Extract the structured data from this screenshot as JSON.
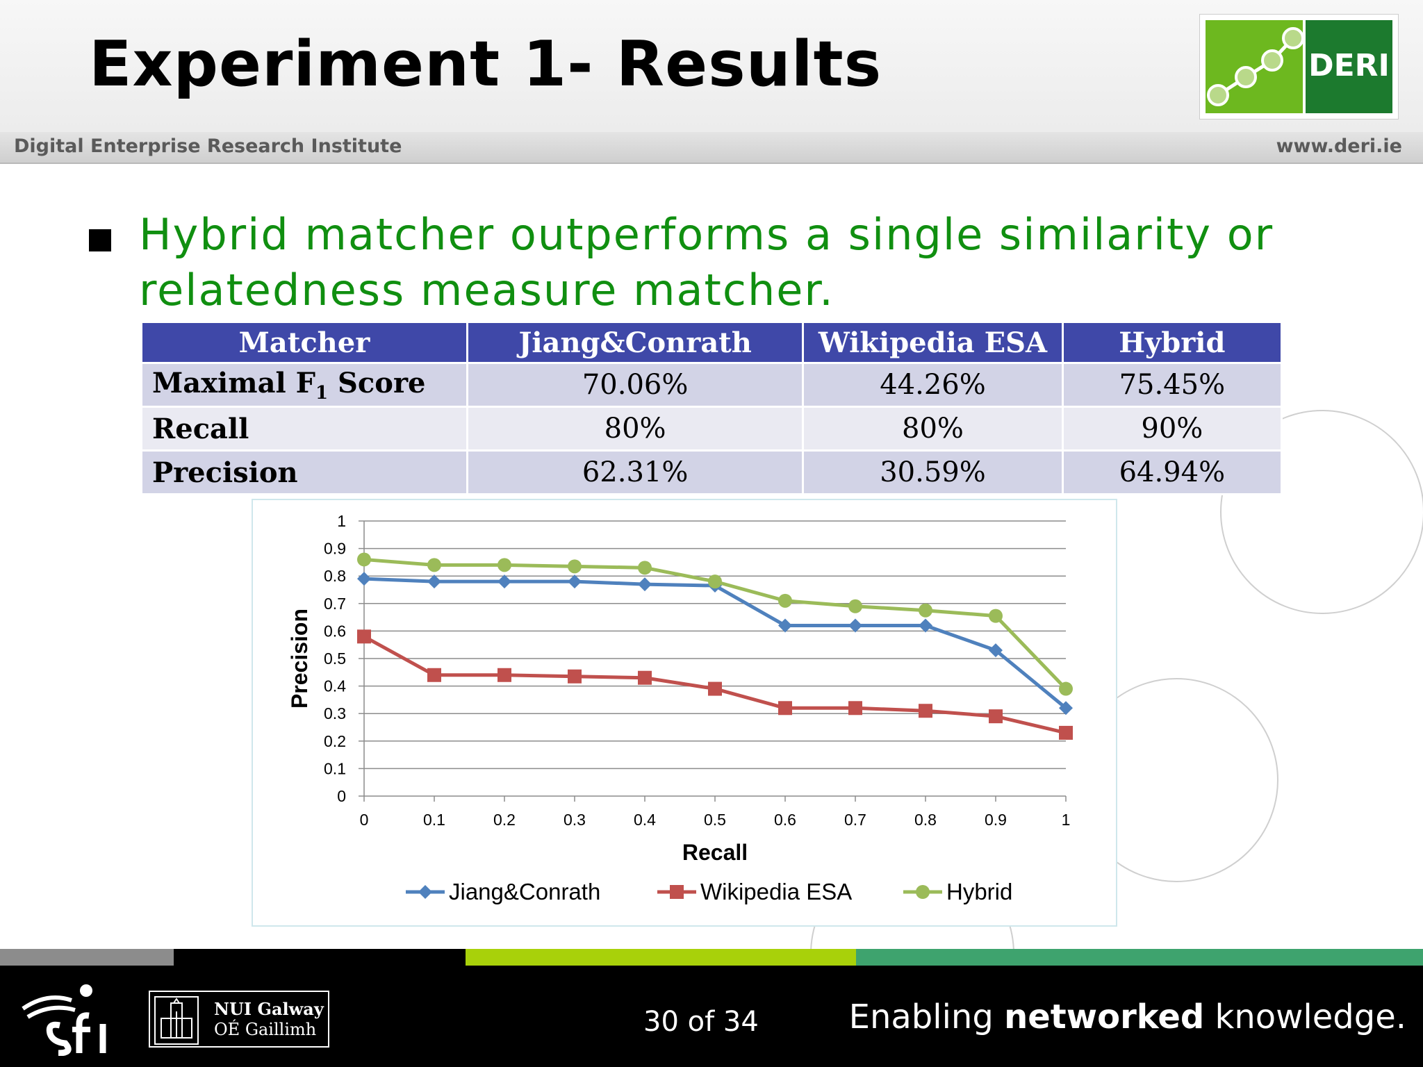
{
  "header": {
    "title": "Experiment 1- Results",
    "institute": "Digital Enterprise Research Institute",
    "website": "www.deri.ie",
    "logo_text": "DERI"
  },
  "bullet": "Hybrid matcher outperforms a single similarity or relatedness measure matcher.",
  "table": {
    "headers": [
      "Matcher",
      "Jiang&Conrath",
      "Wikipedia ESA",
      "Hybrid"
    ],
    "rows": [
      {
        "label": "Maximal F",
        "label_sub": "1",
        "label_suffix": " Score",
        "values": [
          "70.06%",
          "44.26%",
          "75.45%"
        ]
      },
      {
        "label": "Recall",
        "values": [
          "80%",
          "80%",
          "90%"
        ]
      },
      {
        "label": "Precision",
        "values": [
          "62.31%",
          "30.59%",
          "64.94%"
        ]
      }
    ]
  },
  "chart_data": {
    "type": "line",
    "xlabel": "Recall",
    "ylabel": "Precision",
    "x": [
      0,
      0.1,
      0.2,
      0.3,
      0.4,
      0.5,
      0.6,
      0.7,
      0.8,
      0.9,
      1
    ],
    "xticks": [
      "0",
      "0.1",
      "0.2",
      "0.3",
      "0.4",
      "0.5",
      "0.6",
      "0.7",
      "0.8",
      "0.9",
      "1"
    ],
    "yticks": [
      "0",
      "0.1",
      "0.2",
      "0.3",
      "0.4",
      "0.5",
      "0.6",
      "0.7",
      "0.8",
      "0.9",
      "1"
    ],
    "ylim": [
      0,
      1
    ],
    "grid": true,
    "legend_position": "bottom",
    "series": [
      {
        "name": "Jiang&Conrath",
        "color": "#4f81bd",
        "marker": "diamond",
        "values": [
          0.79,
          0.78,
          0.78,
          0.78,
          0.77,
          0.765,
          0.62,
          0.62,
          0.62,
          0.53,
          0.32
        ]
      },
      {
        "name": "Wikipedia ESA",
        "color": "#c0504d",
        "marker": "square",
        "values": [
          0.58,
          0.44,
          0.44,
          0.435,
          0.43,
          0.39,
          0.32,
          0.32,
          0.31,
          0.29,
          0.23
        ]
      },
      {
        "name": "Hybrid",
        "color": "#9bbb59",
        "marker": "circle",
        "values": [
          0.86,
          0.84,
          0.84,
          0.835,
          0.83,
          0.78,
          0.71,
          0.69,
          0.675,
          0.655,
          0.39
        ]
      }
    ]
  },
  "footer": {
    "nui_name": "NUI Galway",
    "nui_irish": "OÉ Gaillimh",
    "page": "30 of 34",
    "tagline_pre": "Enabling ",
    "tagline_bold": "networked",
    "tagline_post": " knowledge.",
    "stripe_colors": [
      "#8c8c8c",
      "#000000",
      "#a8d10a",
      "#3ea36e"
    ]
  }
}
